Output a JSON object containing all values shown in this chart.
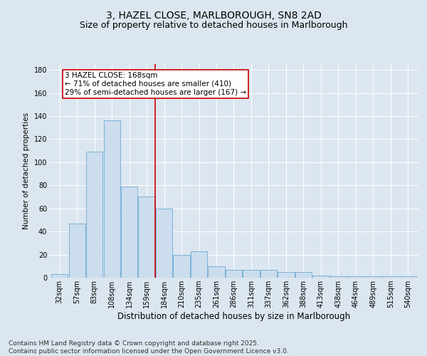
{
  "title1": "3, HAZEL CLOSE, MARLBOROUGH, SN8 2AD",
  "title2": "Size of property relative to detached houses in Marlborough",
  "xlabel": "Distribution of detached houses by size in Marlborough",
  "ylabel": "Number of detached properties",
  "bin_labels": [
    "32sqm",
    "57sqm",
    "83sqm",
    "108sqm",
    "134sqm",
    "159sqm",
    "184sqm",
    "210sqm",
    "235sqm",
    "261sqm",
    "286sqm",
    "311sqm",
    "337sqm",
    "362sqm",
    "388sqm",
    "413sqm",
    "438sqm",
    "464sqm",
    "489sqm",
    "515sqm",
    "540sqm"
  ],
  "bar_values": [
    3,
    47,
    109,
    136,
    79,
    70,
    60,
    20,
    23,
    10,
    7,
    7,
    7,
    5,
    5,
    2,
    1,
    1,
    1,
    1,
    1
  ],
  "bar_color": "#ccdded",
  "bar_edgecolor": "#6aaad4",
  "vline_bin_index": 5.5,
  "annotation_text": "3 HAZEL CLOSE: 168sqm\n← 71% of detached houses are smaller (410)\n29% of semi-detached houses are larger (167) →",
  "annotation_box_color": "#ffffff",
  "annotation_box_edgecolor": "#cc0000",
  "vline_color": "#cc0000",
  "ylim": [
    0,
    185
  ],
  "yticks": [
    0,
    20,
    40,
    60,
    80,
    100,
    120,
    140,
    160,
    180
  ],
  "footer_text": "Contains HM Land Registry data © Crown copyright and database right 2025.\nContains public sector information licensed under the Open Government Licence v3.0.",
  "bg_color": "#dce6f0",
  "plot_bg_color": "#dce6f0",
  "title1_fontsize": 10,
  "title2_fontsize": 9,
  "xlabel_fontsize": 8.5,
  "ylabel_fontsize": 7.5,
  "tick_fontsize": 7,
  "annotation_fontsize": 7.5,
  "footer_fontsize": 6.5
}
